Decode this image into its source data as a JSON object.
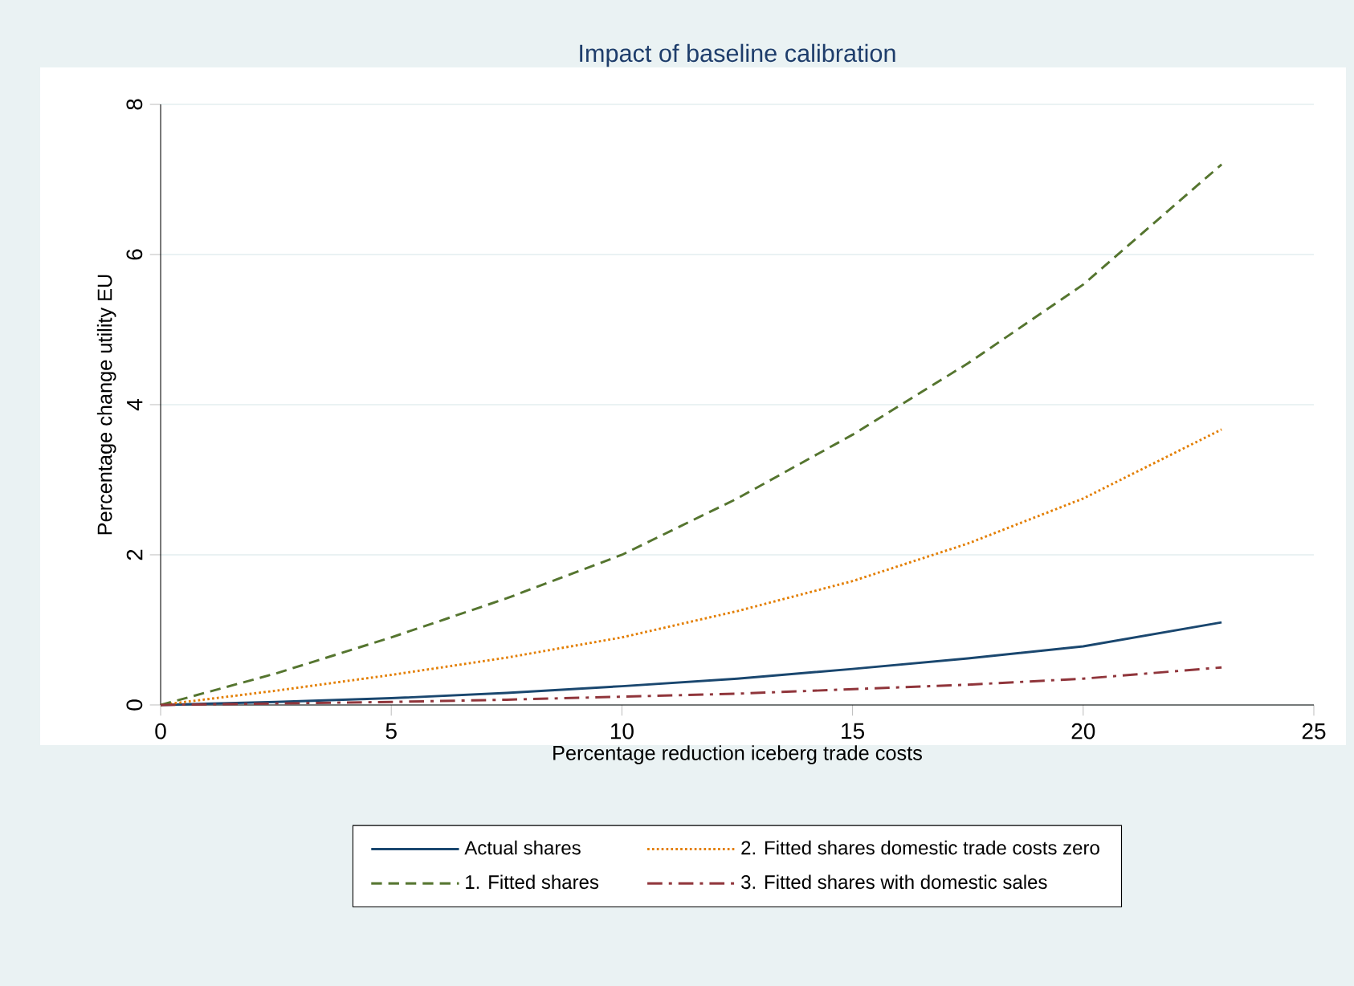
{
  "chart_data": {
    "type": "line",
    "title": "Impact of baseline calibration",
    "xlabel": "Percentage reduction iceberg trade costs",
    "ylabel": "Percentage change utility EU",
    "x": [
      0,
      2.5,
      5,
      7.5,
      10,
      12.5,
      15,
      17.5,
      20,
      23
    ],
    "series": [
      {
        "name": "Actual shares",
        "color": "#1a476f",
        "line_style": "solid",
        "values": [
          0,
          0.04,
          0.09,
          0.16,
          0.25,
          0.35,
          0.48,
          0.62,
          0.78,
          1.1
        ]
      },
      {
        "name": "2. Fitted shares domestic trade costs zero",
        "color": "#e37e00",
        "line_style": "dotted",
        "values": [
          0,
          0.19,
          0.4,
          0.63,
          0.9,
          1.25,
          1.65,
          2.15,
          2.75,
          3.67
        ]
      },
      {
        "name": "1. Fitted shares",
        "color": "#55752f",
        "line_style": "dashed",
        "values": [
          0,
          0.42,
          0.9,
          1.42,
          2.0,
          2.75,
          3.6,
          4.55,
          5.6,
          7.2
        ]
      },
      {
        "name": "3. Fitted shares with domestic sales",
        "color": "#90353b",
        "line_style": "dashdot",
        "values": [
          0,
          0.02,
          0.04,
          0.07,
          0.11,
          0.15,
          0.21,
          0.27,
          0.35,
          0.5
        ]
      }
    ],
    "xlim": [
      0,
      25
    ],
    "ylim": [
      0,
      8
    ],
    "xticks": [
      0,
      5,
      10,
      15,
      20,
      25
    ],
    "yticks": [
      0,
      2,
      4,
      6,
      8
    ],
    "grid": "y",
    "legend": "bottom",
    "marker": "none"
  }
}
